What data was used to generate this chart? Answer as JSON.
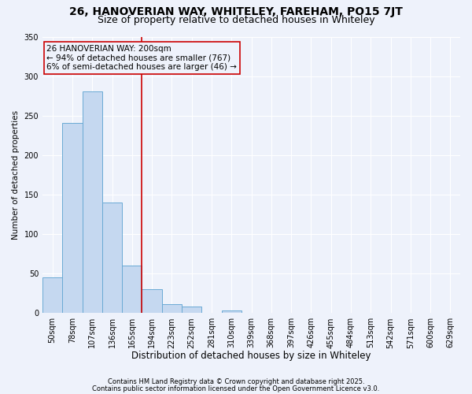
{
  "title1": "26, HANOVERIAN WAY, WHITELEY, FAREHAM, PO15 7JT",
  "title2": "Size of property relative to detached houses in Whiteley",
  "xlabel": "Distribution of detached houses by size in Whiteley",
  "ylabel": "Number of detached properties",
  "categories": [
    "50sqm",
    "78sqm",
    "107sqm",
    "136sqm",
    "165sqm",
    "194sqm",
    "223sqm",
    "252sqm",
    "281sqm",
    "310sqm",
    "339sqm",
    "368sqm",
    "397sqm",
    "426sqm",
    "455sqm",
    "484sqm",
    "513sqm",
    "542sqm",
    "571sqm",
    "600sqm",
    "629sqm"
  ],
  "values": [
    45,
    241,
    281,
    140,
    60,
    30,
    11,
    8,
    0,
    3,
    0,
    0,
    0,
    0,
    0,
    0,
    0,
    0,
    0,
    0,
    0
  ],
  "bar_color": "#c5d8f0",
  "bar_edge_color": "#6aaad4",
  "vline_x": 4.5,
  "vline_color": "#cc0000",
  "annotation_text": "26 HANOVERIAN WAY: 200sqm\n← 94% of detached houses are smaller (767)\n6% of semi-detached houses are larger (46) →",
  "annotation_box_color": "#cc0000",
  "ylim": [
    0,
    350
  ],
  "yticks": [
    0,
    50,
    100,
    150,
    200,
    250,
    300,
    350
  ],
  "footnote1": "Contains HM Land Registry data © Crown copyright and database right 2025.",
  "footnote2": "Contains public sector information licensed under the Open Government Licence v3.0.",
  "bg_color": "#eef2fb",
  "grid_color": "#ffffff",
  "title1_fontsize": 10,
  "title2_fontsize": 9,
  "annot_fontsize": 7.5,
  "ylabel_fontsize": 7.5,
  "xlabel_fontsize": 8.5,
  "footnote_fontsize": 6,
  "tick_fontsize": 7
}
